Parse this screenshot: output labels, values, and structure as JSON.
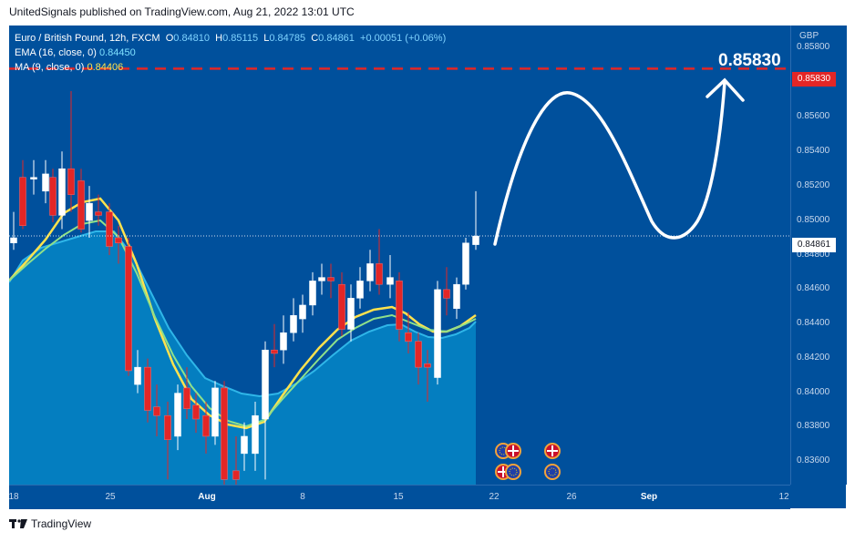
{
  "header": {
    "text": "UnitedSignals published on TradingView.com, Aug 21, 2022 13:01 UTC"
  },
  "legend": {
    "symbol": "Euro / British Pound, 12h, FXCM",
    "open_label": "O",
    "open": "0.84810",
    "high_label": "H",
    "high": "0.85115",
    "low_label": "L",
    "low": "0.84785",
    "close_label": "C",
    "close": "0.84861",
    "change": "+0.00051 (+0.06%)",
    "ema_label": "EMA (16, close, 0)",
    "ema_value": "0.84450",
    "ma_label": "MA (9, close, 0)",
    "ma_value": "0.84406"
  },
  "price_axis": {
    "currency": "GBP",
    "ticks": [
      "0.85800",
      "0.85600",
      "0.85400",
      "0.85200",
      "0.85000",
      "0.84800",
      "0.84600",
      "0.84400",
      "0.84200",
      "0.84000",
      "0.83800",
      "0.83600"
    ],
    "target_badge": "0.85830",
    "last_badge": "0.84861"
  },
  "time_axis": {
    "ticks": [
      "18",
      "25",
      "Aug",
      "8",
      "15",
      "22",
      "26",
      "Sep",
      "12"
    ]
  },
  "annotation": {
    "target_text": "0.85830"
  },
  "colors": {
    "background": "#00509c",
    "bull": "#ffffff",
    "bear": "#e32626",
    "ema": "#8fe08a",
    "ma": "#ffe24d",
    "target_line": "#e32626"
  },
  "footer": {
    "brand": "TradingView"
  }
}
